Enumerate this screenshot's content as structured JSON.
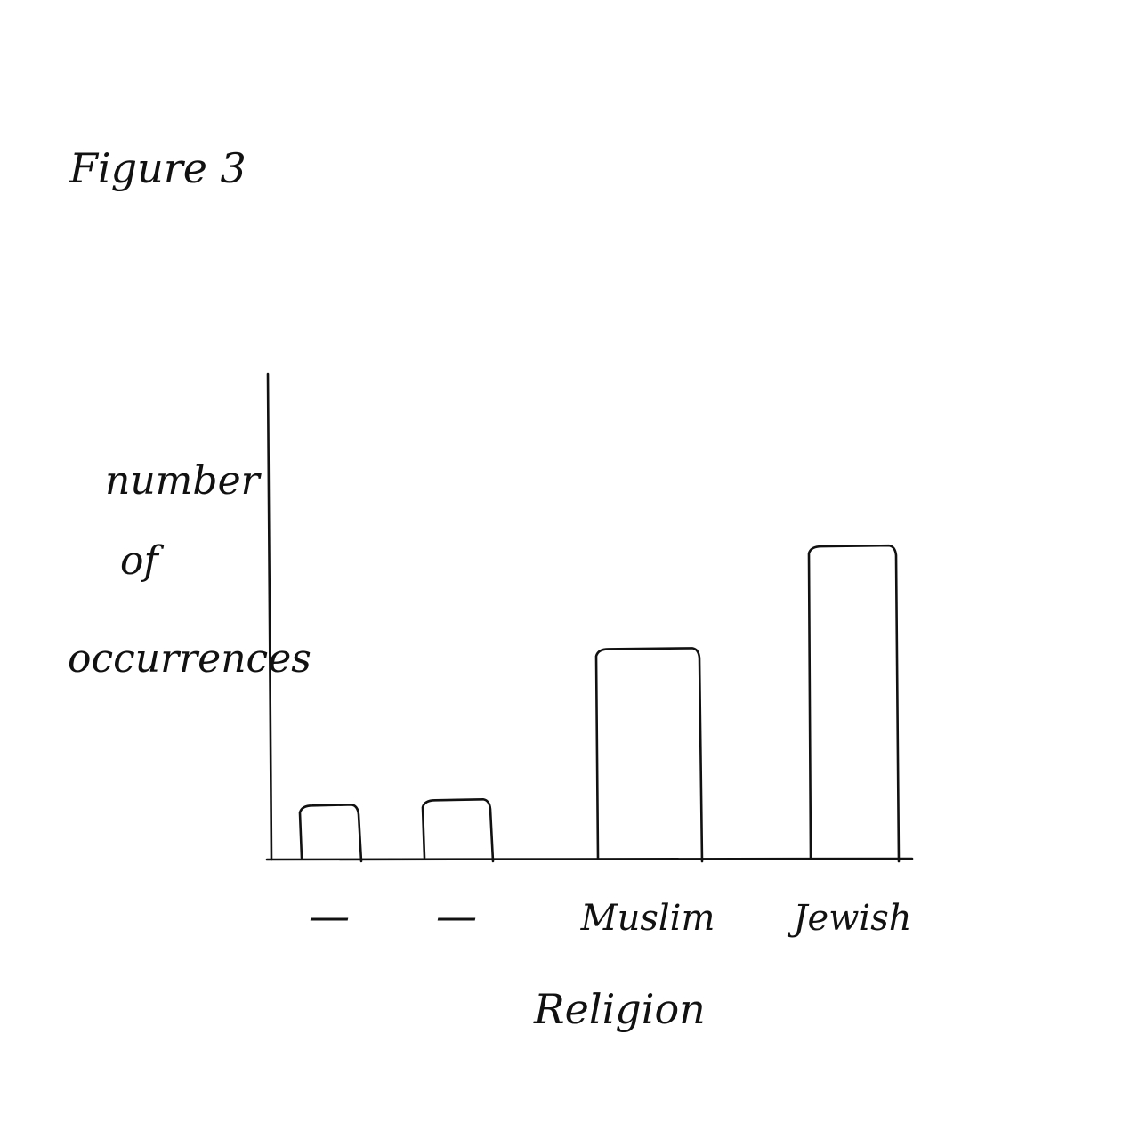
{
  "figure_label": "Figure 3",
  "chart_data": {
    "type": "bar",
    "title": "",
    "xlabel": "Religion",
    "ylabel": "number of occurrences",
    "categories": [
      "—",
      "—",
      "Muslim",
      "Jewish"
    ],
    "values": [
      1,
      1.1,
      3.9,
      5.8
    ],
    "ylim": [
      0,
      9
    ],
    "grid": false,
    "legend": "none",
    "colors": {
      "ink": "#111111",
      "background": "#ffffff"
    }
  }
}
